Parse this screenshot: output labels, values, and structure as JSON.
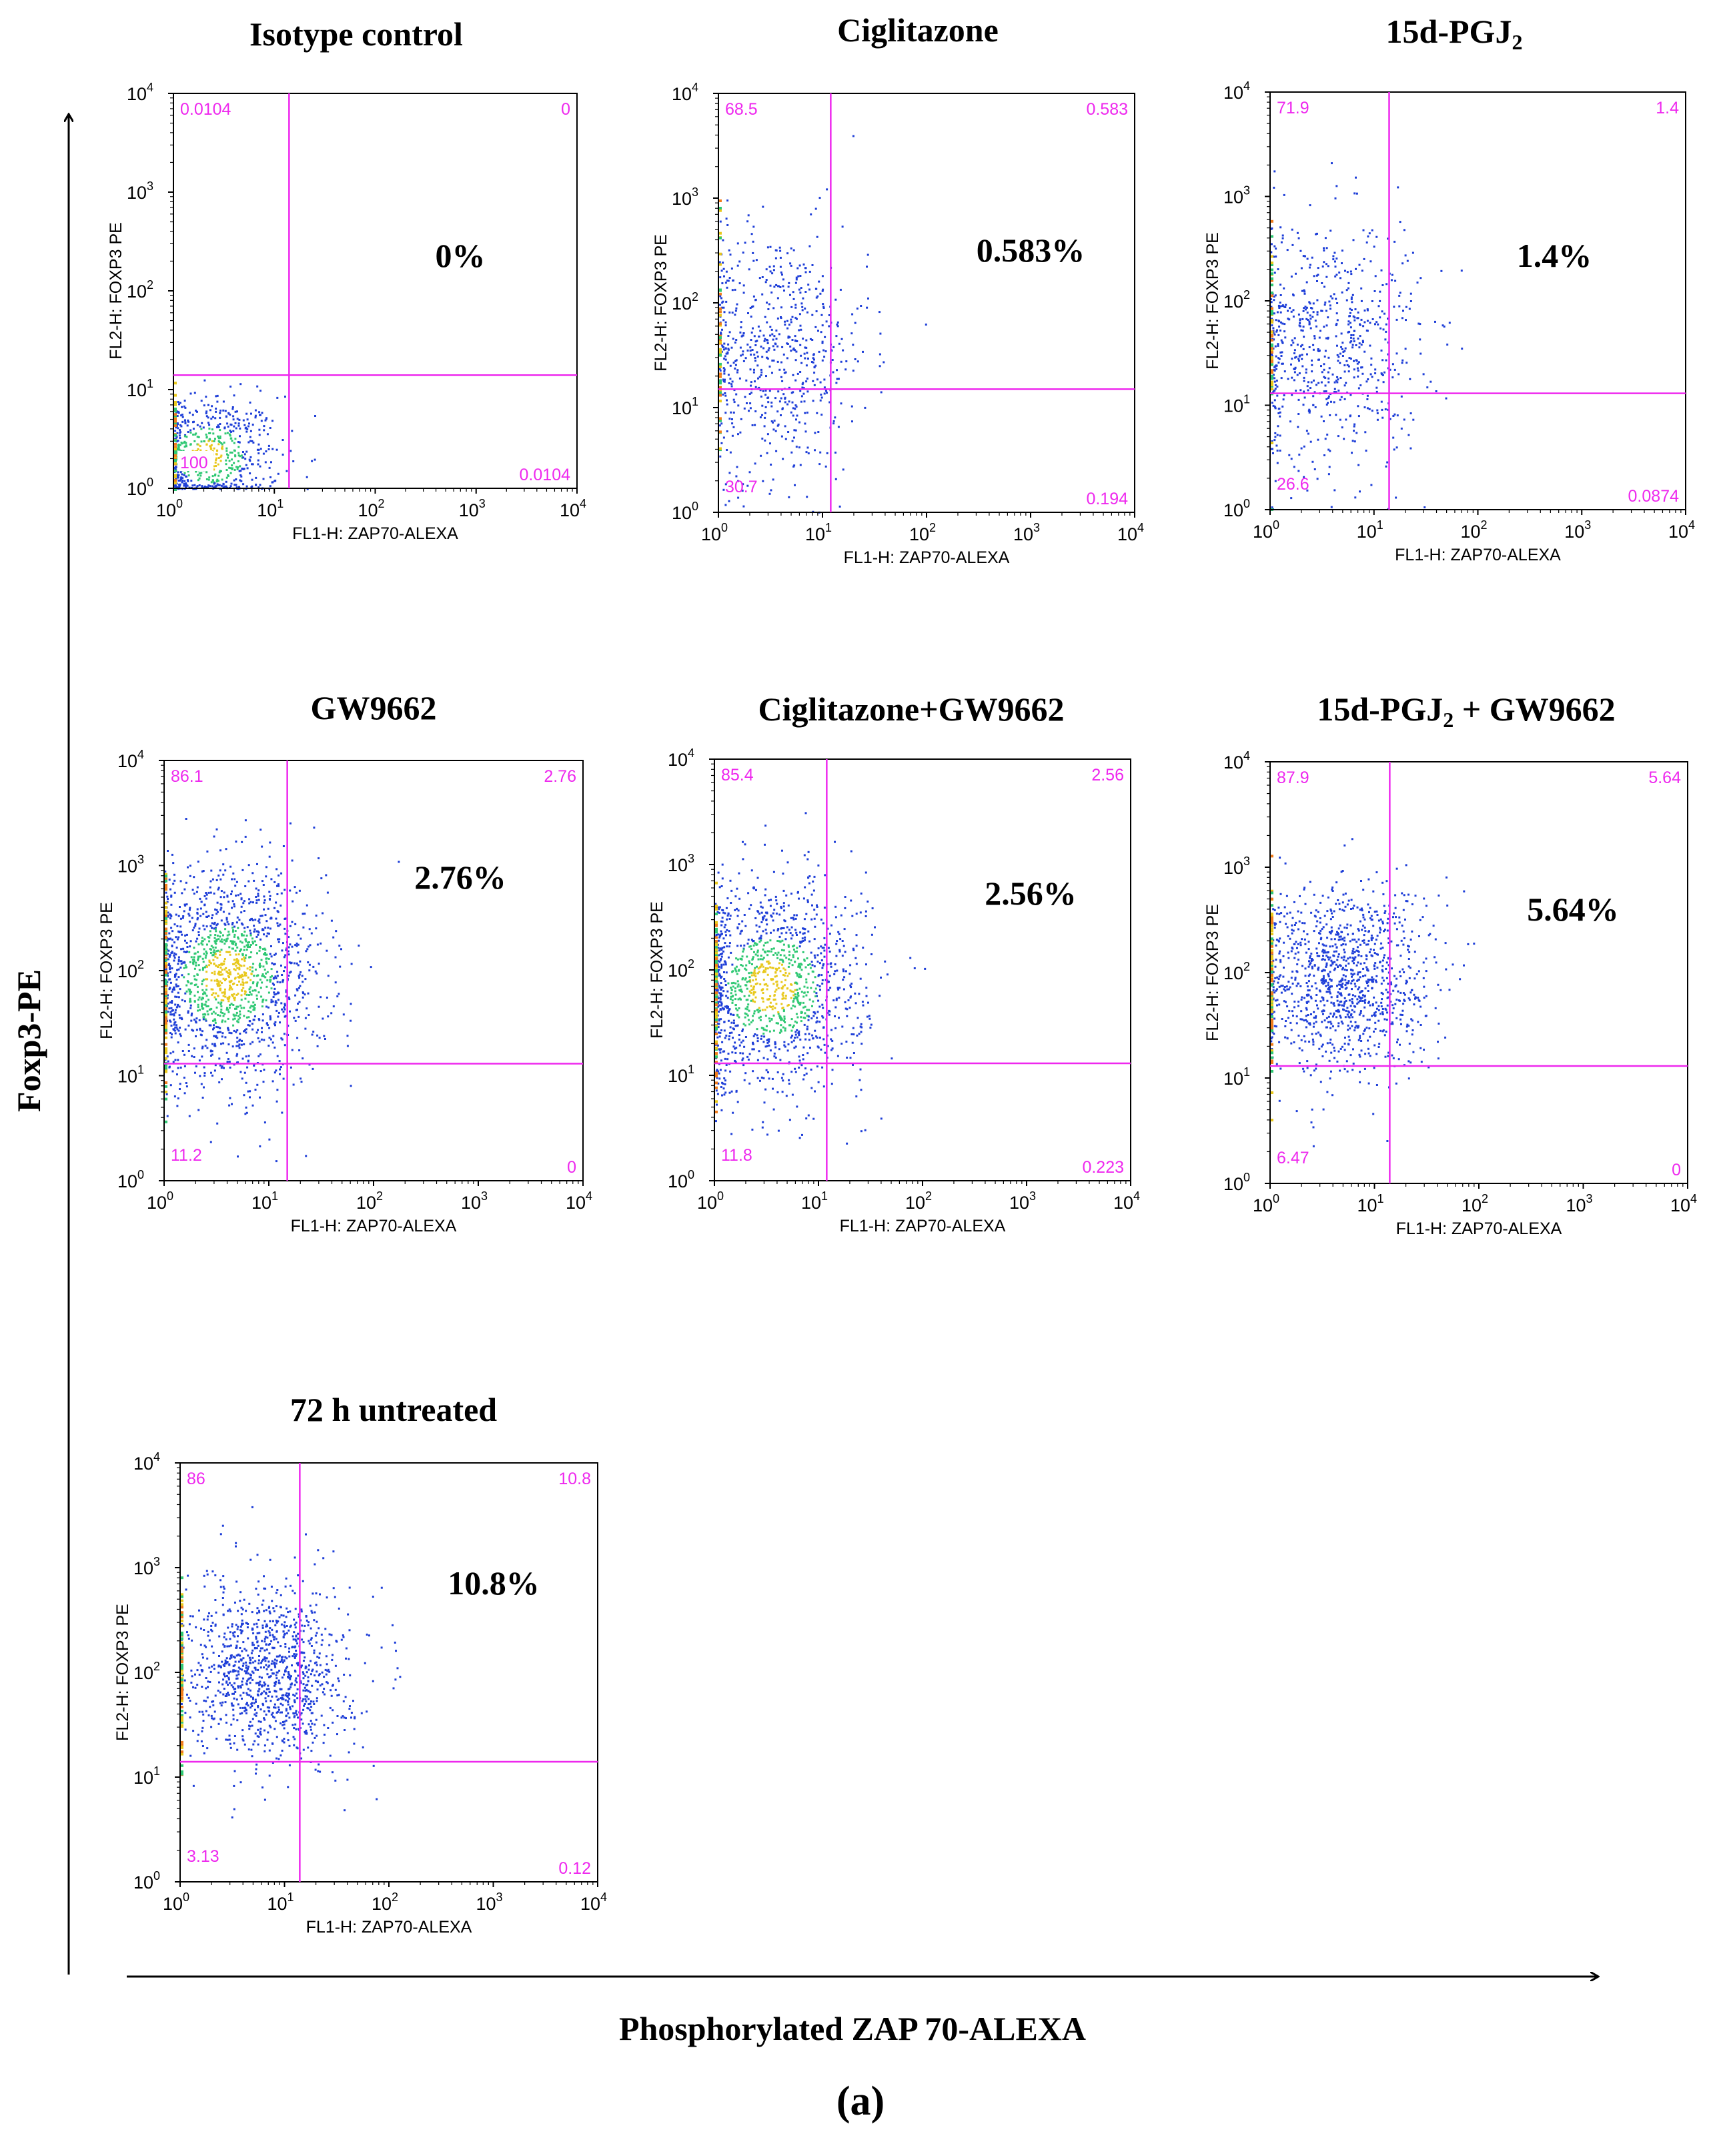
{
  "figure": {
    "y_axis_label": "Foxp3-PE",
    "x_axis_label": "Phosphorylated ZAP 70-ALEXA",
    "panel_label": "(a)"
  },
  "colors": {
    "gate": "#ee28ee",
    "dots": "#1f3fd8",
    "dense_green": "#2fc873",
    "dense_yellow": "#e8c81c",
    "dense_orange": "#f07c1c",
    "axis": "#000000"
  },
  "chart_data": [
    {
      "type": "scatter",
      "title": "Isotype control",
      "xlabel": "FL1-H: ZAP70-ALEXA",
      "ylabel": "FL2-H: FOXP3 PE",
      "xscale": "log",
      "yscale": "log",
      "xlim": [
        1,
        10000
      ],
      "ylim": [
        1,
        10000
      ],
      "gate": {
        "x": 14,
        "y": 14
      },
      "quadrants": {
        "upper_left": "0.0104",
        "upper_right": "0",
        "lower_left": "100",
        "lower_right": "0.0104"
      },
      "annotation": "0%",
      "population": {
        "x_center": 2.2,
        "y_center": 2.2,
        "x_spread": 0.35,
        "y_spread": 0.3,
        "count": 650,
        "density": "high"
      }
    },
    {
      "type": "scatter",
      "title": "Ciglitazone",
      "xlabel": "FL1-H: ZAP70-ALEXA",
      "ylabel": "FL2-H: FOXP3 PE",
      "xscale": "log",
      "yscale": "log",
      "xlim": [
        1,
        10000
      ],
      "ylim": [
        1,
        10000
      ],
      "gate": {
        "x": 12,
        "y": 15
      },
      "quadrants": {
        "upper_left": "68.5",
        "upper_right": "0.583",
        "lower_left": "30.7",
        "lower_right": "0.194"
      },
      "annotation": "0.583%",
      "population": {
        "x_center": 3.5,
        "y_center": 35,
        "x_spread": 0.45,
        "y_spread": 0.6,
        "count": 650,
        "density": "low"
      }
    },
    {
      "type": "scatter",
      "title": "15d-PGJ",
      "title_subscript": "2",
      "xlabel": "FL1-H: ZAP70-ALEXA",
      "ylabel": "FL2-H: FOXP3 PE",
      "xscale": "log",
      "yscale": "log",
      "xlim": [
        1,
        10000
      ],
      "ylim": [
        1,
        10000
      ],
      "gate": {
        "x": 14,
        "y": 13
      },
      "quadrants": {
        "upper_left": "71.9",
        "upper_right": "1.4",
        "lower_left": "26.6",
        "lower_right": "0.0874"
      },
      "annotation": "1.4%",
      "population": {
        "x_center": 3.5,
        "y_center": 40,
        "x_spread": 0.45,
        "y_spread": 0.6,
        "count": 700,
        "density": "low"
      }
    },
    {
      "type": "scatter",
      "title": "GW9662",
      "xlabel": "FL1-H: ZAP70-ALEXA",
      "ylabel": "FL2-H: FOXP3 PE",
      "xscale": "log",
      "yscale": "log",
      "xlim": [
        1,
        10000
      ],
      "ylim": [
        1,
        10000
      ],
      "gate": {
        "x": 15,
        "y": 13
      },
      "quadrants": {
        "upper_left": "86.1",
        "upper_right": "2.76",
        "lower_left": "11.2",
        "lower_right": "0"
      },
      "annotation": "2.76%",
      "population": {
        "x_center": 4,
        "y_center": 90,
        "x_spread": 0.45,
        "y_spread": 0.5,
        "count": 1500,
        "density": "high"
      }
    },
    {
      "type": "scatter",
      "title": "Ciglitazone+GW9662",
      "xlabel": "FL1-H: ZAP70-ALEXA",
      "ylabel": "FL2-H: FOXP3 PE",
      "xscale": "log",
      "yscale": "log",
      "xlim": [
        1,
        10000
      ],
      "ylim": [
        1,
        10000
      ],
      "gate": {
        "x": 12,
        "y": 13
      },
      "quadrants": {
        "upper_left": "85.4",
        "upper_right": "2.56",
        "lower_left": "11.8",
        "lower_right": "0.223"
      },
      "annotation": "2.56%",
      "population": {
        "x_center": 3.5,
        "y_center": 70,
        "x_spread": 0.45,
        "y_spread": 0.5,
        "count": 1300,
        "density": "high"
      }
    },
    {
      "type": "scatter",
      "title": "15d-PGJ",
      "title_subscript": "2",
      "title_suffix": " + GW9662",
      "xlabel": "FL1-H: ZAP70-ALEXA",
      "ylabel": "FL2-H: FOXP3 PE",
      "xscale": "log",
      "yscale": "log",
      "xlim": [
        1,
        10000
      ],
      "ylim": [
        1,
        10000
      ],
      "gate": {
        "x": 14,
        "y": 13
      },
      "quadrants": {
        "upper_left": "87.9",
        "upper_right": "5.64",
        "lower_left": "6.47",
        "lower_right": "0"
      },
      "annotation": "5.64%",
      "population": {
        "x_center": 5,
        "y_center": 90,
        "x_spread": 0.42,
        "y_spread": 0.45,
        "count": 1100,
        "density": "low"
      }
    },
    {
      "type": "scatter",
      "title": "72 h untreated",
      "xlabel": "FL1-H: ZAP70-ALEXA",
      "ylabel": "FL2-H: FOXP3 PE",
      "xscale": "log",
      "yscale": "log",
      "xlim": [
        1,
        10000
      ],
      "ylim": [
        1,
        10000
      ],
      "gate": {
        "x": 14,
        "y": 14
      },
      "quadrants": {
        "upper_left": "86",
        "upper_right": "10.8",
        "lower_left": "3.13",
        "lower_right": "0.12"
      },
      "annotation": "10.8%",
      "population": {
        "x_center": 7,
        "y_center": 100,
        "x_spread": 0.38,
        "y_spread": 0.42,
        "count": 1100,
        "density": "low"
      }
    }
  ]
}
